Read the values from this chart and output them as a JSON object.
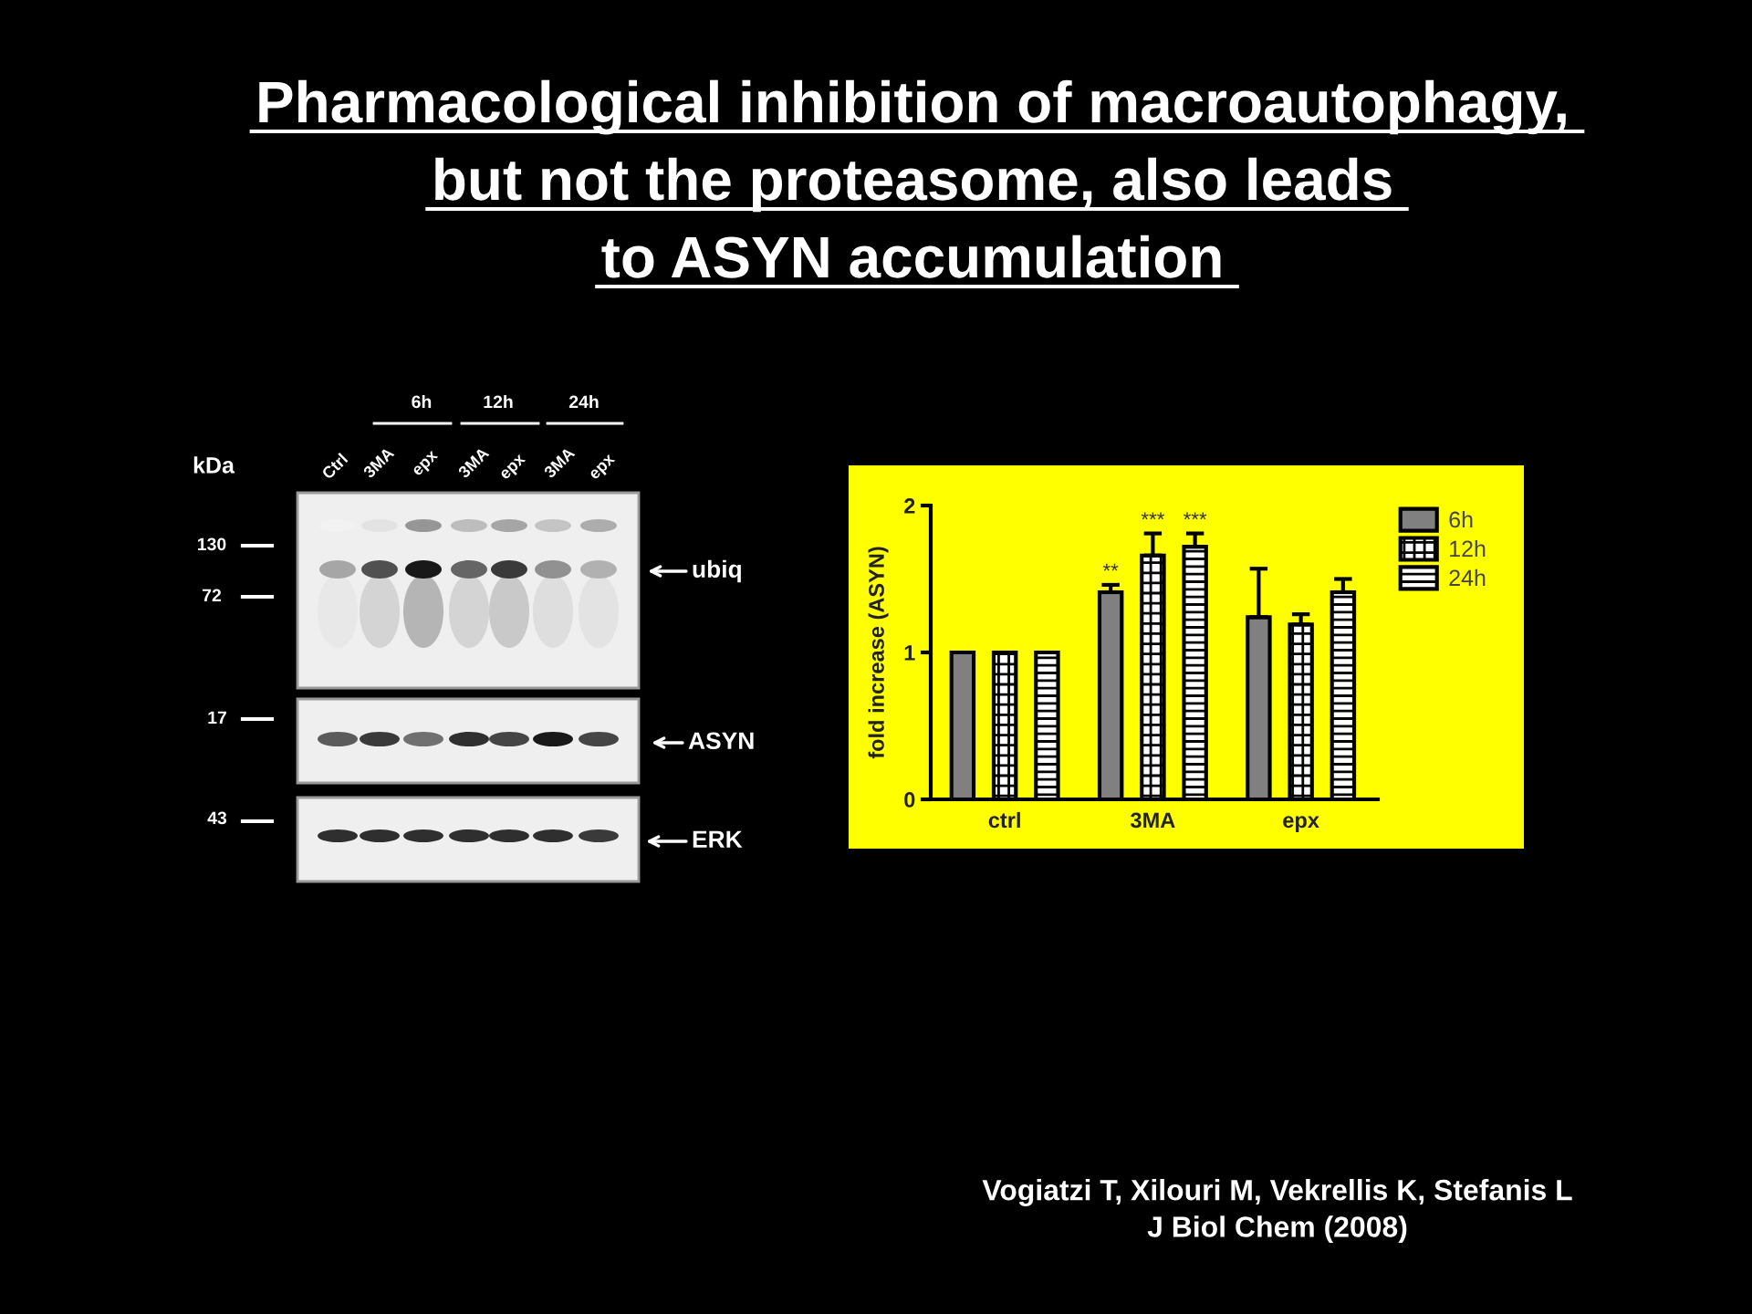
{
  "chart_data": [
    {
      "type": "other",
      "title": "Pharmacological inhibition of macroautophagy,\nbut not the proteasome, also leads\nto ASYN accumulation",
      "annotations": [
        "6h",
        "12h",
        "24h",
        "kDa",
        "Ctrl",
        "3MA",
        "epx",
        "3MA",
        "epx",
        "3MA",
        "epx",
        "130",
        "72",
        "17",
        "43",
        "ubiq",
        "ASYN",
        "ERK"
      ]
    },
    {
      "type": "bar",
      "categories": [
        "ctrl",
        "3MA",
        "epx"
      ],
      "ylabel": "fold increase (ASYN)",
      "ylim": [
        0,
        2
      ],
      "yticks": [
        0,
        1,
        2
      ],
      "legend": "top right",
      "series": [
        {
          "name": "6h",
          "color": "#808080",
          "values": [
            1,
            1.41,
            1.24
          ],
          "errors": [
            null,
            [
              1.41,
              1.46
            ],
            [
              1.24,
              1.57
            ]
          ],
          "value_labels": [
            null,
            "**",
            null
          ]
        },
        {
          "name": "12h",
          "color": "#000000",
          "values": [
            1,
            1.66,
            1.19
          ],
          "errors": [
            null,
            [
              1.66,
              1.81
            ],
            [
              1.19,
              1.26
            ]
          ],
          "value_labels": [
            null,
            "***",
            null
          ]
        },
        {
          "name": "24h",
          "color": "#000000",
          "values": [
            1,
            1.72,
            1.41
          ],
          "errors": [
            null,
            [
              1.72,
              1.81
            ],
            [
              1.41,
              1.5
            ]
          ],
          "value_labels": [
            null,
            "***",
            null
          ]
        }
      ],
      "annotations": [
        "Vogiatzi T, Xilouri M, Vekrellis K, Stefanis L\nJ Biol Chem (2008)"
      ]
    }
  ]
}
